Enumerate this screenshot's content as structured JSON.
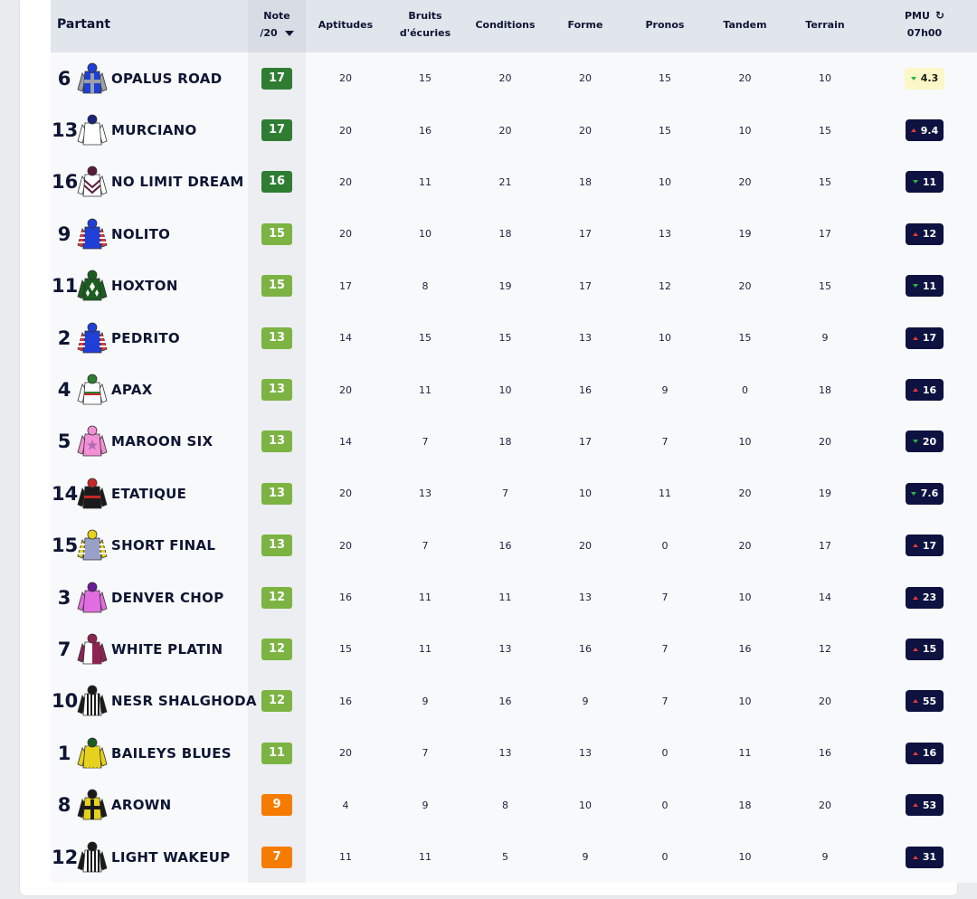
{
  "header": {
    "partant": "Partant",
    "note_line1": "Note",
    "note_line2": "/20",
    "aptitudes": "Aptitudes",
    "bruits_line1": "Bruits",
    "bruits_line2": "d'écuries",
    "conditions": "Conditions",
    "forme": "Forme",
    "pronos": "Pronos",
    "tandem": "Tandem",
    "terrain": "Terrain",
    "pmu_line1": "PMU",
    "pmu_line2": "07h00",
    "refresh_glyph": "↻"
  },
  "colors": {
    "grade_dark_green": "#2e7d32",
    "grade_light_green": "#7cb342",
    "grade_orange": "#f57c00",
    "odds_bg": "#0d1240",
    "odds_light_bg": "#fbf7c6",
    "trend_up": "#e23a3a",
    "trend_down": "#29b34a"
  },
  "runners": [
    {
      "num": "6",
      "name": "OPALUS ROAD",
      "note": "17",
      "grade_level": "dark",
      "aptitudes": "20",
      "bruits": "15",
      "conditions": "20",
      "forme": "20",
      "pronos": "15",
      "tandem": "20",
      "terrain": "10",
      "pmu": "4.3",
      "trend": "down",
      "odds_style": "light",
      "silk": {
        "body": "#1f3fd6",
        "sleeves": "#9aa0aa",
        "pattern": "cross",
        "cap": "#1f3fd6"
      }
    },
    {
      "num": "13",
      "name": "MURCIANO",
      "note": "17",
      "grade_level": "dark",
      "aptitudes": "20",
      "bruits": "16",
      "conditions": "20",
      "forme": "20",
      "pronos": "15",
      "tandem": "10",
      "terrain": "15",
      "pmu": "9.4",
      "trend": "up",
      "odds_style": "dark",
      "silk": {
        "body": "#ffffff",
        "sleeves": "#ffffff",
        "pattern": "plain",
        "cap": "#1a237e"
      }
    },
    {
      "num": "16",
      "name": "NO LIMIT DREAM",
      "note": "16",
      "grade_level": "dark",
      "aptitudes": "20",
      "bruits": "11",
      "conditions": "21",
      "forme": "18",
      "pronos": "10",
      "tandem": "20",
      "terrain": "15",
      "pmu": "11",
      "trend": "down",
      "odds_style": "dark",
      "silk": {
        "body": "#ffffff",
        "sleeves": "#ffffff",
        "pattern": "chevron",
        "cap": "#5a1a3a"
      }
    },
    {
      "num": "9",
      "name": "NOLITO",
      "note": "15",
      "grade_level": "light",
      "aptitudes": "20",
      "bruits": "10",
      "conditions": "18",
      "forme": "17",
      "pronos": "13",
      "tandem": "19",
      "terrain": "17",
      "pmu": "12",
      "trend": "up",
      "odds_style": "dark",
      "silk": {
        "body": "#1f3fd6",
        "sleeves": "#e23a3a",
        "pattern": "hoopsleeves",
        "cap": "#1f3fd6"
      }
    },
    {
      "num": "11",
      "name": "HOXTON",
      "note": "15",
      "grade_level": "light",
      "aptitudes": "17",
      "bruits": "8",
      "conditions": "19",
      "forme": "17",
      "pronos": "12",
      "tandem": "20",
      "terrain": "15",
      "pmu": "11",
      "trend": "down",
      "odds_style": "dark",
      "silk": {
        "body": "#1b5e20",
        "sleeves": "#1b5e20",
        "pattern": "diamonds",
        "cap": "#1b5e20"
      }
    },
    {
      "num": "2",
      "name": "PEDRITO",
      "note": "13",
      "grade_level": "light",
      "aptitudes": "14",
      "bruits": "15",
      "conditions": "15",
      "forme": "13",
      "pronos": "10",
      "tandem": "15",
      "terrain": "9",
      "pmu": "17",
      "trend": "up",
      "odds_style": "dark",
      "silk": {
        "body": "#1f3fd6",
        "sleeves": "#e23a3a",
        "pattern": "hoopsleeves",
        "cap": "#1f3fd6"
      }
    },
    {
      "num": "4",
      "name": "APAX",
      "note": "13",
      "grade_level": "light",
      "aptitudes": "20",
      "bruits": "11",
      "conditions": "10",
      "forme": "16",
      "pronos": "9",
      "tandem": "0",
      "terrain": "18",
      "pmu": "16",
      "trend": "up",
      "odds_style": "dark",
      "silk": {
        "body": "#ffffff",
        "sleeves": "#ffffff",
        "pattern": "tricolor",
        "cap": "#2e7d32"
      }
    },
    {
      "num": "5",
      "name": "MAROON SIX",
      "note": "13",
      "grade_level": "light",
      "aptitudes": "14",
      "bruits": "7",
      "conditions": "18",
      "forme": "17",
      "pronos": "7",
      "tandem": "10",
      "terrain": "20",
      "pmu": "20",
      "trend": "down",
      "odds_style": "dark",
      "silk": {
        "body": "#f48fd6",
        "sleeves": "#f48fd6",
        "pattern": "star",
        "cap": "#f48fd6"
      }
    },
    {
      "num": "14",
      "name": "ETATIQUE",
      "note": "13",
      "grade_level": "light",
      "aptitudes": "20",
      "bruits": "13",
      "conditions": "7",
      "forme": "10",
      "pronos": "11",
      "tandem": "20",
      "terrain": "19",
      "pmu": "7.6",
      "trend": "down",
      "odds_style": "dark",
      "silk": {
        "body": "#1a1a1a",
        "sleeves": "#1a1a1a",
        "pattern": "redhoop",
        "cap": "#c62828"
      }
    },
    {
      "num": "15",
      "name": "SHORT FINAL",
      "note": "13",
      "grade_level": "light",
      "aptitudes": "20",
      "bruits": "7",
      "conditions": "16",
      "forme": "20",
      "pronos": "0",
      "tandem": "20",
      "terrain": "17",
      "pmu": "17",
      "trend": "up",
      "odds_style": "dark",
      "silk": {
        "body": "#9aa0c8",
        "sleeves": "#e6d11c",
        "pattern": "hoopsleeves",
        "cap": "#e6d11c"
      }
    },
    {
      "num": "3",
      "name": "DENVER CHOP",
      "note": "12",
      "grade_level": "light",
      "aptitudes": "16",
      "bruits": "11",
      "conditions": "11",
      "forme": "13",
      "pronos": "7",
      "tandem": "10",
      "terrain": "14",
      "pmu": "23",
      "trend": "up",
      "odds_style": "dark",
      "silk": {
        "body": "#e06ee0",
        "sleeves": "#e06ee0",
        "pattern": "plain",
        "cap": "#6a1b9a"
      }
    },
    {
      "num": "7",
      "name": "WHITE PLATIN",
      "note": "12",
      "grade_level": "light",
      "aptitudes": "15",
      "bruits": "11",
      "conditions": "13",
      "forme": "16",
      "pronos": "7",
      "tandem": "16",
      "terrain": "12",
      "pmu": "15",
      "trend": "up",
      "odds_style": "dark",
      "silk": {
        "body": "#ffffff",
        "sleeves": "#8e2452",
        "pattern": "halves",
        "cap": "#8e2452"
      }
    },
    {
      "num": "10",
      "name": "NESR SHALGHODA",
      "note": "12",
      "grade_level": "light",
      "aptitudes": "16",
      "bruits": "9",
      "conditions": "16",
      "forme": "9",
      "pronos": "7",
      "tandem": "10",
      "terrain": "20",
      "pmu": "55",
      "trend": "up",
      "odds_style": "dark",
      "silk": {
        "body": "#ffffff",
        "sleeves": "#1a1a1a",
        "pattern": "stripes",
        "cap": "#1a1a1a"
      }
    },
    {
      "num": "1",
      "name": "BAILEYS BLUES",
      "note": "11",
      "grade_level": "light",
      "aptitudes": "20",
      "bruits": "7",
      "conditions": "13",
      "forme": "13",
      "pronos": "0",
      "tandem": "11",
      "terrain": "16",
      "pmu": "16",
      "trend": "up",
      "odds_style": "dark",
      "silk": {
        "body": "#e6d11c",
        "sleeves": "#e6d11c",
        "pattern": "stripes",
        "cap": "#1b5e20"
      }
    },
    {
      "num": "8",
      "name": "AROWN",
      "note": "9",
      "grade_level": "orange",
      "aptitudes": "4",
      "bruits": "9",
      "conditions": "8",
      "forme": "10",
      "pronos": "0",
      "tandem": "18",
      "terrain": "20",
      "pmu": "53",
      "trend": "up",
      "odds_style": "dark",
      "silk": {
        "body": "#e6d11c",
        "sleeves": "#1a1a1a",
        "pattern": "cross",
        "cap": "#1a1a1a"
      }
    },
    {
      "num": "12",
      "name": "LIGHT WAKEUP",
      "note": "7",
      "grade_level": "orange",
      "aptitudes": "11",
      "bruits": "11",
      "conditions": "5",
      "forme": "9",
      "pronos": "0",
      "tandem": "10",
      "terrain": "9",
      "pmu": "31",
      "trend": "up",
      "odds_style": "dark",
      "silk": {
        "body": "#ffffff",
        "sleeves": "#1a1a1a",
        "pattern": "stripes",
        "cap": "#1a1a1a"
      }
    }
  ]
}
